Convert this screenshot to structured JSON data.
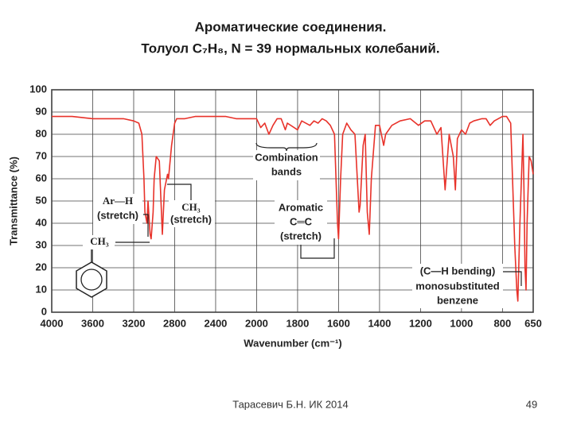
{
  "header": {
    "title_lines": [
      "Ароматические соединения.",
      "Толуол C₇H₈,  N = 39 нормальных колебаний."
    ]
  },
  "chart_data": {
    "type": "line",
    "xlabel": "Wavenumber (cm⁻¹)",
    "ylabel": "Transmittance (%)",
    "xlim": [
      4000,
      650
    ],
    "xbreak": 2000,
    "xbreak_scale": 2,
    "xticks": [
      4000,
      3600,
      3200,
      2800,
      2400,
      2000,
      1800,
      1600,
      1400,
      1200,
      1000,
      800,
      650
    ],
    "ylim": [
      0,
      100
    ],
    "yticks": [
      0,
      10,
      20,
      30,
      40,
      50,
      60,
      70,
      80,
      90,
      100
    ],
    "grid": true,
    "x": [
      4000,
      3800,
      3600,
      3400,
      3300,
      3200,
      3150,
      3120,
      3100,
      3090,
      3070,
      3060,
      3040,
      3030,
      3010,
      3000,
      2980,
      2950,
      2920,
      2900,
      2870,
      2860,
      2830,
      2800,
      2780,
      2700,
      2600,
      2500,
      2400,
      2300,
      2200,
      2100,
      2000,
      1980,
      1960,
      1940,
      1920,
      1900,
      1880,
      1860,
      1850,
      1800,
      1780,
      1740,
      1720,
      1700,
      1680,
      1660,
      1640,
      1620,
      1605,
      1600,
      1590,
      1580,
      1560,
      1540,
      1520,
      1500,
      1495,
      1480,
      1470,
      1460,
      1450,
      1440,
      1420,
      1400,
      1380,
      1370,
      1340,
      1300,
      1250,
      1210,
      1180,
      1150,
      1120,
      1100,
      1080,
      1060,
      1040,
      1030,
      1020,
      1000,
      980,
      960,
      940,
      900,
      880,
      860,
      840,
      800,
      780,
      760,
      740,
      730,
      725,
      715,
      700,
      695,
      690,
      685,
      680,
      670,
      660,
      650
    ],
    "series": [
      {
        "color": "#e8322a",
        "values": [
          88,
          88,
          87,
          87,
          87,
          86,
          85,
          80,
          60,
          45,
          40,
          50,
          35,
          33,
          45,
          60,
          70,
          68,
          35,
          55,
          62,
          60,
          75,
          85,
          87,
          87,
          88,
          88,
          88,
          88,
          87,
          87,
          87,
          83,
          85,
          80,
          84,
          87,
          87,
          82,
          85,
          82,
          86,
          84,
          86,
          85,
          87,
          86,
          84,
          80,
          40,
          33,
          60,
          80,
          85,
          82,
          80,
          45,
          48,
          75,
          80,
          45,
          35,
          60,
          84,
          84,
          75,
          80,
          84,
          86,
          87,
          84,
          86,
          86,
          80,
          83,
          55,
          80,
          70,
          55,
          78,
          82,
          80,
          85,
          86,
          87,
          87,
          84,
          86,
          88,
          88,
          85,
          30,
          10,
          5,
          40,
          80,
          55,
          20,
          10,
          40,
          70,
          68,
          62
        ]
      }
    ],
    "annotations": [
      {
        "lines": [
          "Combination",
          "bands"
        ]
      },
      {
        "lines": [
          "Ar—H",
          "(stretch)"
        ]
      },
      {
        "lines": [
          "CH₃",
          "(stretch)"
        ]
      },
      {
        "lines": [
          "Aromatic",
          "C═C",
          "(stretch)"
        ]
      },
      {
        "lines": [
          "(C—H bending)",
          "monosubstituted",
          "benzene"
        ]
      },
      {
        "lines": [
          "CH₃"
        ]
      }
    ]
  },
  "footer": {
    "author": "Тарасевич Б.Н.  ИК 2014",
    "page": "49"
  }
}
